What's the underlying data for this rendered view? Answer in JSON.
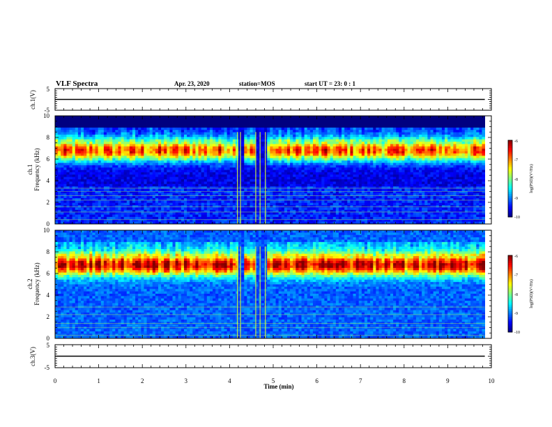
{
  "header": {
    "title": "VLF Spectra",
    "date": "Apr. 23, 2020",
    "station": "station=MOS",
    "start": "start  UT  =  23: 0  : 1"
  },
  "chart_data": [
    {
      "type": "line",
      "id": "ch1-waveform",
      "ylabel": "ch.1(V)",
      "ylim": [
        -5,
        5
      ],
      "yticks": [
        "5",
        "-5"
      ],
      "xlim": [
        0,
        10
      ],
      "series": [
        {
          "x": [
            0,
            9.85
          ],
          "y": [
            0,
            0
          ]
        }
      ]
    },
    {
      "type": "heatmap",
      "id": "ch1-spectrogram",
      "ylabel": "ch.1",
      "ylabel2": "Frequency (kHz)",
      "ylim": [
        0,
        10
      ],
      "yticks": [
        "0",
        "2",
        "4",
        "6",
        "8",
        "10"
      ],
      "xlim": [
        0,
        10
      ],
      "data_end_min": 9.85,
      "colorbar": {
        "label": "log(PSD)(V²/Hz)",
        "range": [
          -10,
          -6
        ],
        "ticks": [
          "-6",
          "-7",
          "-8",
          "-9",
          "-10"
        ]
      }
    },
    {
      "type": "heatmap",
      "id": "ch2-spectrogram",
      "ylabel": "ch.2",
      "ylabel2": "Frequency (kHz)",
      "ylim": [
        0,
        10
      ],
      "yticks": [
        "0",
        "2",
        "4",
        "6",
        "8",
        "10"
      ],
      "xlim": [
        0,
        10
      ],
      "data_end_min": 9.85,
      "colorbar": {
        "label": "log(PSD)(V²/Hz)",
        "range": [
          -10,
          -6
        ],
        "ticks": [
          "-6",
          "-7",
          "-8",
          "-9",
          "-10"
        ]
      }
    },
    {
      "type": "line",
      "id": "ch3-waveform",
      "ylabel": "ch.3(V)",
      "ylim": [
        -5,
        5
      ],
      "yticks": [
        "5",
        "-5"
      ],
      "xlim": [
        0,
        10
      ],
      "xlabel": "Time (min)",
      "xticks": [
        "0",
        "1",
        "2",
        "3",
        "4",
        "5",
        "6",
        "7",
        "8",
        "9",
        "10"
      ],
      "series": [
        {
          "x": [
            0,
            9.85
          ],
          "y": [
            0,
            0
          ]
        }
      ]
    }
  ]
}
